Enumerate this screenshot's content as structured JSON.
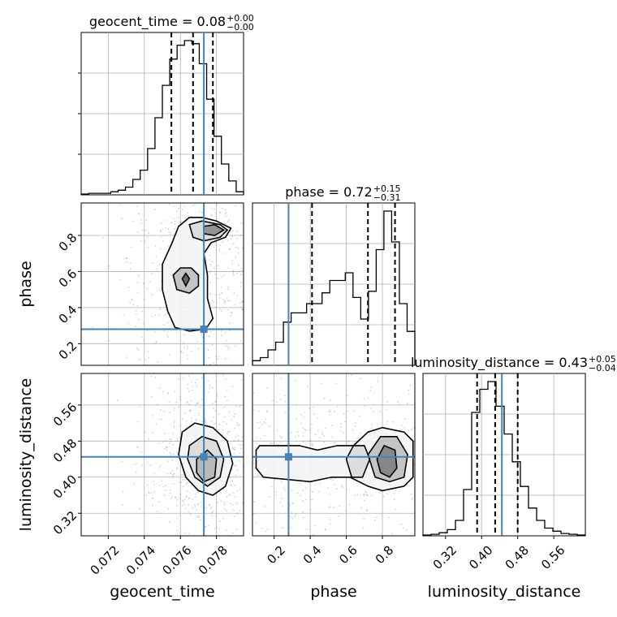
{
  "chart_data": {
    "type": "corner",
    "truths": {
      "geocent_time": 0.0773,
      "phase": 0.28,
      "luminosity_distance": 0.445
    },
    "colors": {
      "truth": "#4682b4",
      "hist": "#000000",
      "grid": "#b0b0b0",
      "points": "#808080"
    },
    "parameters": [
      {
        "name": "geocent_time",
        "label": "geocent_time",
        "range": [
          0.0705,
          0.0795
        ],
        "ticks": [
          0.072,
          0.074,
          0.076,
          0.078
        ],
        "tick_labels": [
          "0.072",
          "0.074",
          "0.076",
          "0.078"
        ],
        "title": {
          "main": "geocent_time = 0.08",
          "sup": "+0.00",
          "sub": "−0.00"
        },
        "quantiles": [
          0.0755,
          0.0767,
          0.0778
        ],
        "hist": [
          0.005,
          0.01,
          0.01,
          0.01,
          0.02,
          0.03,
          0.05,
          0.1,
          0.16,
          0.3,
          0.5,
          0.71,
          0.88,
          0.97,
          1.0,
          0.98,
          0.85,
          0.62,
          0.38,
          0.2,
          0.09,
          0.02
        ]
      },
      {
        "name": "phase",
        "label": "phase",
        "range": [
          0.08,
          0.98
        ],
        "ticks": [
          0.2,
          0.4,
          0.6,
          0.8
        ],
        "tick_labels": [
          "0.2",
          "0.4",
          "0.6",
          "0.8"
        ],
        "title": {
          "main": "phase = 0.72",
          "sup": "+0.15",
          "sub": "−0.31"
        },
        "quantiles": [
          0.41,
          0.72,
          0.87
        ],
        "hist": [
          0.03,
          0.05,
          0.1,
          0.15,
          0.28,
          0.34,
          0.34,
          0.4,
          0.4,
          0.47,
          0.55,
          0.55,
          0.6,
          0.44,
          0.3,
          0.48,
          0.75,
          1.0,
          0.8,
          0.4,
          0.22
        ]
      },
      {
        "name": "luminosity_distance",
        "label": "luminosity_distance",
        "range": [
          0.27,
          0.63
        ],
        "ticks": [
          0.32,
          0.4,
          0.48,
          0.56
        ],
        "tick_labels": [
          "0.32",
          "0.40",
          "0.48",
          "0.56"
        ],
        "title": {
          "main": "luminosity_distance = 0.43",
          "sup": "+0.05",
          "sub": "−0.04"
        },
        "quantiles": [
          0.39,
          0.43,
          0.48
        ],
        "hist": [
          0.005,
          0.01,
          0.02,
          0.04,
          0.1,
          0.3,
          0.8,
          0.95,
          1.0,
          0.84,
          0.66,
          0.48,
          0.32,
          0.18,
          0.1,
          0.05,
          0.03,
          0.015,
          0.01,
          0.005
        ]
      }
    ],
    "pairs": [
      {
        "x": "geocent_time",
        "y": "phase",
        "contours": [
          {
            "level": "outer",
            "points": [
              [
                0.0759,
                0.85
              ],
              [
                0.0765,
                0.9
              ],
              [
                0.0772,
                0.9
              ],
              [
                0.078,
                0.88
              ],
              [
                0.0788,
                0.84
              ],
              [
                0.0785,
                0.79
              ],
              [
                0.0777,
                0.76
              ],
              [
                0.0773,
                0.7
              ],
              [
                0.0775,
                0.58
              ],
              [
                0.0775,
                0.45
              ],
              [
                0.0778,
                0.34
              ],
              [
                0.0774,
                0.28
              ],
              [
                0.0765,
                0.27
              ],
              [
                0.0757,
                0.29
              ],
              [
                0.0753,
                0.38
              ],
              [
                0.075,
                0.5
              ],
              [
                0.075,
                0.64
              ],
              [
                0.0755,
                0.75
              ]
            ]
          },
          {
            "level": "mid",
            "points": [
              [
                0.0765,
                0.86
              ],
              [
                0.0772,
                0.88
              ],
              [
                0.0782,
                0.86
              ],
              [
                0.0786,
                0.83
              ],
              [
                0.0782,
                0.79
              ],
              [
                0.0773,
                0.77
              ],
              [
                0.0767,
                0.79
              ]
            ]
          },
          {
            "level": "mid2",
            "points": [
              [
                0.0756,
                0.58
              ],
              [
                0.076,
                0.62
              ],
              [
                0.0766,
                0.62
              ],
              [
                0.077,
                0.58
              ],
              [
                0.077,
                0.52
              ],
              [
                0.0765,
                0.48
              ],
              [
                0.0758,
                0.5
              ]
            ]
          },
          {
            "level": "inner",
            "points": [
              [
                0.0773,
                0.85
              ],
              [
                0.0779,
                0.86
              ],
              [
                0.0784,
                0.83
              ],
              [
                0.0779,
                0.8
              ],
              [
                0.0773,
                0.81
              ]
            ]
          },
          {
            "level": "inner2",
            "points": [
              [
                0.0761,
                0.56
              ],
              [
                0.0763,
                0.59
              ],
              [
                0.0765,
                0.56
              ],
              [
                0.0763,
                0.52
              ]
            ]
          }
        ]
      },
      {
        "x": "geocent_time",
        "y": "luminosity_distance",
        "contours": [
          {
            "level": "outer",
            "points": [
              [
                0.0761,
                0.5
              ],
              [
                0.0768,
                0.52
              ],
              [
                0.0778,
                0.51
              ],
              [
                0.0786,
                0.48
              ],
              [
                0.0789,
                0.43
              ],
              [
                0.0785,
                0.38
              ],
              [
                0.0778,
                0.36
              ],
              [
                0.077,
                0.37
              ],
              [
                0.0763,
                0.4
              ],
              [
                0.0759,
                0.45
              ]
            ]
          },
          {
            "level": "mid",
            "points": [
              [
                0.0765,
                0.47
              ],
              [
                0.0772,
                0.49
              ],
              [
                0.078,
                0.48
              ],
              [
                0.0784,
                0.44
              ],
              [
                0.0782,
                0.4
              ],
              [
                0.0775,
                0.38
              ],
              [
                0.0768,
                0.4
              ],
              [
                0.0764,
                0.44
              ]
            ]
          },
          {
            "level": "inner",
            "points": [
              [
                0.0769,
                0.44
              ],
              [
                0.0775,
                0.46
              ],
              [
                0.078,
                0.44
              ],
              [
                0.0779,
                0.4
              ],
              [
                0.0773,
                0.39
              ],
              [
                0.0769,
                0.41
              ]
            ]
          }
        ]
      },
      {
        "x": "phase",
        "y": "luminosity_distance",
        "contours": [
          {
            "level": "outer",
            "points": [
              [
                0.1,
                0.46
              ],
              [
                0.12,
                0.47
              ],
              [
                0.34,
                0.47
              ],
              [
                0.44,
                0.46
              ],
              [
                0.55,
                0.47
              ],
              [
                0.64,
                0.47
              ],
              [
                0.72,
                0.5
              ],
              [
                0.8,
                0.51
              ],
              [
                0.92,
                0.5
              ],
              [
                0.97,
                0.48
              ],
              [
                0.97,
                0.4
              ],
              [
                0.92,
                0.38
              ],
              [
                0.8,
                0.37
              ],
              [
                0.72,
                0.38
              ],
              [
                0.62,
                0.4
              ],
              [
                0.52,
                0.4
              ],
              [
                0.4,
                0.39
              ],
              [
                0.14,
                0.4
              ],
              [
                0.1,
                0.42
              ]
            ]
          },
          {
            "level": "mid",
            "points": [
              [
                0.6,
                0.44
              ],
              [
                0.64,
                0.47
              ],
              [
                0.7,
                0.47
              ],
              [
                0.73,
                0.44
              ],
              [
                0.69,
                0.4
              ],
              [
                0.63,
                0.4
              ]
            ]
          },
          {
            "level": "mid2",
            "points": [
              [
                0.72,
                0.45
              ],
              [
                0.79,
                0.49
              ],
              [
                0.88,
                0.49
              ],
              [
                0.94,
                0.45
              ],
              [
                0.92,
                0.4
              ],
              [
                0.84,
                0.39
              ],
              [
                0.76,
                0.4
              ]
            ]
          },
          {
            "level": "inner",
            "points": [
              [
                0.77,
                0.44
              ],
              [
                0.81,
                0.47
              ],
              [
                0.87,
                0.46
              ],
              [
                0.88,
                0.42
              ],
              [
                0.84,
                0.4
              ],
              [
                0.79,
                0.41
              ]
            ]
          }
        ]
      }
    ]
  }
}
